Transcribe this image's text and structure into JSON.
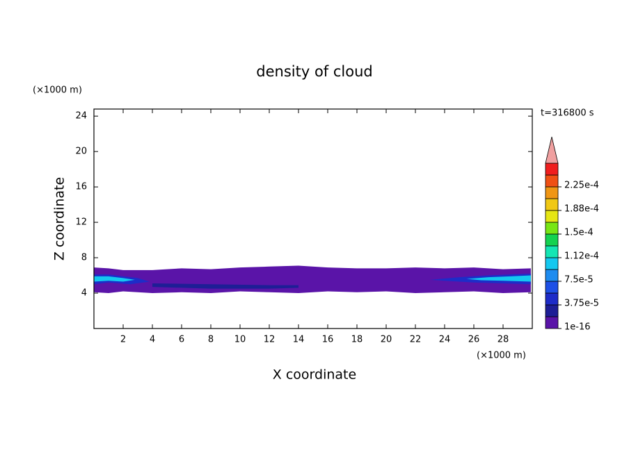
{
  "chart_data": {
    "type": "contour",
    "title": "density of cloud",
    "xlabel": "X coordinate",
    "ylabel": "Z coordinate",
    "x_unit": "(×1000 m)",
    "y_unit": "(×1000 m)",
    "annotation": "t=316800 s",
    "xlim": [
      0,
      30
    ],
    "ylim": [
      0,
      24.8
    ],
    "xticks": [
      2,
      4,
      6,
      8,
      10,
      12,
      14,
      16,
      18,
      20,
      22,
      24,
      26,
      28
    ],
    "yticks": [
      4,
      8,
      12,
      16,
      20,
      24
    ],
    "colorbar_colors": [
      "#5a14a8",
      "#1e1e96",
      "#1e2cc8",
      "#1e50e6",
      "#1e8cf0",
      "#14c8f0",
      "#14e6b4",
      "#14d250",
      "#78e614",
      "#e6e614",
      "#f0c814",
      "#f09614",
      "#f05014",
      "#f01e1e"
    ],
    "colorbar_extend_color": "#f0a0a0",
    "colorbar_ticks": [
      {
        "value": 1e-16,
        "label": "1e-16"
      },
      {
        "value": 3.75e-05,
        "label": "3.75e-5"
      },
      {
        "value": 7.5e-05,
        "label": "7.5e-5"
      },
      {
        "value": 0.000112,
        "label": "1.12e-4"
      },
      {
        "value": 0.00015,
        "label": "1.5e-4"
      },
      {
        "value": 0.000188,
        "label": "1.88e-4"
      },
      {
        "value": 0.000225,
        "label": "2.25e-4"
      }
    ],
    "regions": [
      {
        "color": "#5a14a8",
        "x": [
          0,
          1,
          2,
          4,
          6,
          8,
          10,
          12,
          14,
          16,
          18,
          20,
          22,
          24,
          26,
          28,
          29.9,
          29.9,
          28,
          26,
          24,
          22,
          20,
          18,
          16,
          14,
          12,
          10,
          8,
          6,
          4,
          2,
          1,
          0
        ],
        "z": [
          6.9,
          6.8,
          6.6,
          6.6,
          6.8,
          6.7,
          6.9,
          7.0,
          7.1,
          6.9,
          6.8,
          6.8,
          6.9,
          6.8,
          6.9,
          6.7,
          6.8,
          4.1,
          4.0,
          4.2,
          4.1,
          4.0,
          4.2,
          4.1,
          4.2,
          4.0,
          4.1,
          4.2,
          4.0,
          4.1,
          4.0,
          4.2,
          4.0,
          4.1
        ]
      },
      {
        "color": "#1e1e96",
        "x": [
          4,
          8,
          12,
          14,
          14,
          12,
          8,
          4
        ],
        "z": [
          5.1,
          5.0,
          4.9,
          4.9,
          4.6,
          4.5,
          4.5,
          4.7
        ]
      },
      {
        "color": "#1e2cc8",
        "x": [
          0,
          1,
          2,
          3,
          3.8,
          2.5,
          1,
          0
        ],
        "z": [
          6.1,
          6.1,
          5.9,
          5.7,
          5.3,
          5.0,
          5.2,
          5.0
        ]
      },
      {
        "color": "#14c8f0",
        "x": [
          0,
          1,
          2,
          2.8,
          2,
          1,
          0
        ],
        "z": [
          5.9,
          5.9,
          5.7,
          5.5,
          5.3,
          5.4,
          5.3
        ]
      },
      {
        "color": "#1e2cc8",
        "x": [
          23,
          25,
          27,
          29.9,
          29.9,
          28,
          26,
          24
        ],
        "z": [
          5.5,
          5.8,
          6.0,
          6.2,
          5.0,
          5.1,
          5.2,
          5.4
        ]
      },
      {
        "color": "#14c8f0",
        "x": [
          25.5,
          27,
          28.5,
          29.9,
          29.9,
          28,
          26.5
        ],
        "z": [
          5.6,
          5.8,
          5.9,
          6.0,
          5.3,
          5.4,
          5.45
        ]
      }
    ]
  }
}
